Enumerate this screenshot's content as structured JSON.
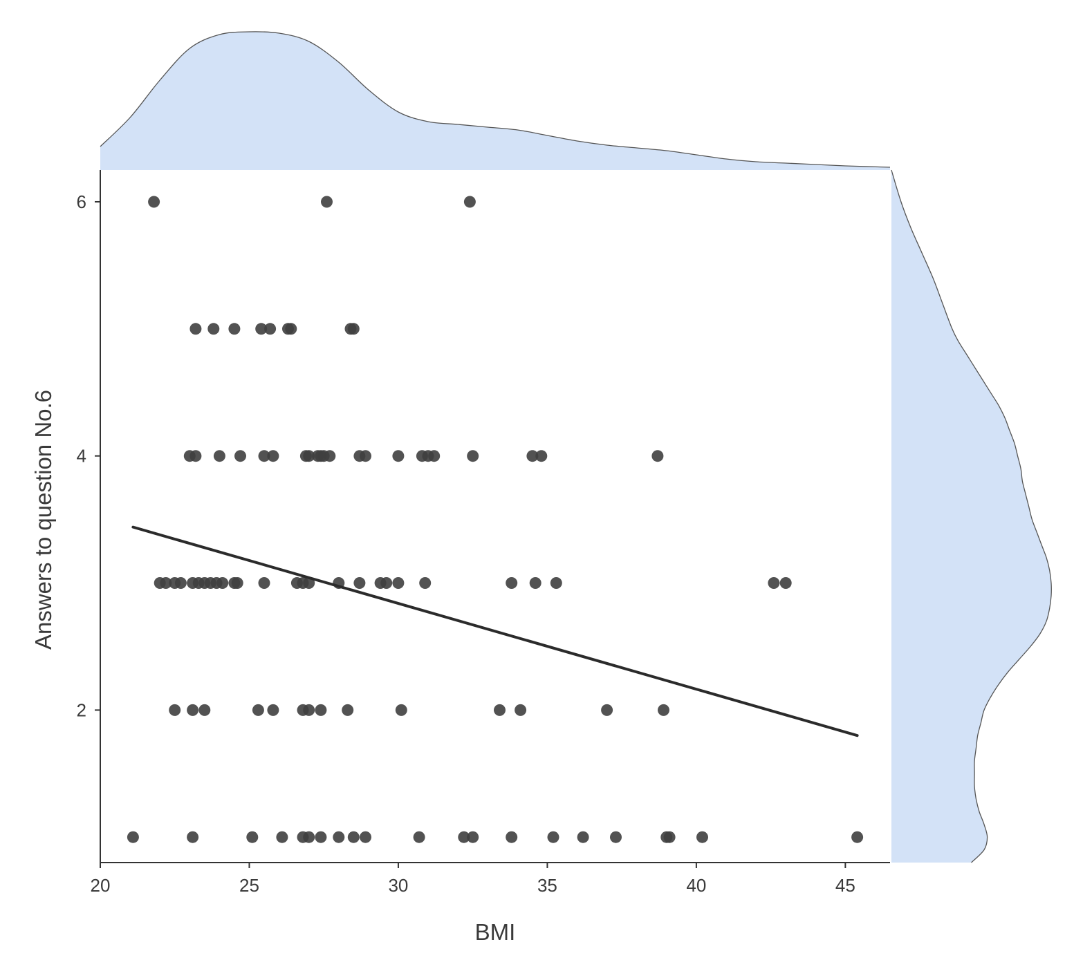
{
  "chart_data": {
    "type": "scatter",
    "xlabel": "BMI",
    "ylabel": "Answers to question No.6",
    "xlim": [
      20,
      46.5
    ],
    "ylim": [
      0.8,
      6.25
    ],
    "x_ticks": [
      20,
      25,
      30,
      35,
      40,
      45
    ],
    "x_tick_labels": [
      "20",
      "25",
      "30",
      "35",
      "40",
      "45"
    ],
    "y_ticks": [
      2,
      4,
      6
    ],
    "y_tick_labels": [
      "2",
      "4",
      "6"
    ],
    "grid": false,
    "legend": "none",
    "point_color": "#3f3f3f",
    "density_fill": "#d3e2f7",
    "density_stroke": "#555555",
    "points": [
      {
        "x": 21.8,
        "y": 6
      },
      {
        "x": 27.6,
        "y": 6
      },
      {
        "x": 32.4,
        "y": 6
      },
      {
        "x": 23.2,
        "y": 5
      },
      {
        "x": 23.8,
        "y": 5
      },
      {
        "x": 24.5,
        "y": 5
      },
      {
        "x": 25.4,
        "y": 5
      },
      {
        "x": 25.7,
        "y": 5
      },
      {
        "x": 26.3,
        "y": 5
      },
      {
        "x": 26.4,
        "y": 5
      },
      {
        "x": 28.4,
        "y": 5
      },
      {
        "x": 28.5,
        "y": 5
      },
      {
        "x": 23.0,
        "y": 4
      },
      {
        "x": 23.2,
        "y": 4
      },
      {
        "x": 24.0,
        "y": 4
      },
      {
        "x": 24.7,
        "y": 4
      },
      {
        "x": 25.5,
        "y": 4
      },
      {
        "x": 25.8,
        "y": 4
      },
      {
        "x": 26.9,
        "y": 4
      },
      {
        "x": 27.0,
        "y": 4
      },
      {
        "x": 27.3,
        "y": 4
      },
      {
        "x": 27.4,
        "y": 4
      },
      {
        "x": 27.5,
        "y": 4
      },
      {
        "x": 27.7,
        "y": 4
      },
      {
        "x": 28.7,
        "y": 4
      },
      {
        "x": 28.9,
        "y": 4
      },
      {
        "x": 30.0,
        "y": 4
      },
      {
        "x": 30.8,
        "y": 4
      },
      {
        "x": 31.0,
        "y": 4
      },
      {
        "x": 31.2,
        "y": 4
      },
      {
        "x": 32.5,
        "y": 4
      },
      {
        "x": 34.5,
        "y": 4
      },
      {
        "x": 34.8,
        "y": 4
      },
      {
        "x": 38.7,
        "y": 4
      },
      {
        "x": 22.0,
        "y": 3
      },
      {
        "x": 22.2,
        "y": 3
      },
      {
        "x": 22.5,
        "y": 3
      },
      {
        "x": 22.7,
        "y": 3
      },
      {
        "x": 23.1,
        "y": 3
      },
      {
        "x": 23.3,
        "y": 3
      },
      {
        "x": 23.5,
        "y": 3
      },
      {
        "x": 23.7,
        "y": 3
      },
      {
        "x": 23.9,
        "y": 3
      },
      {
        "x": 24.1,
        "y": 3
      },
      {
        "x": 24.5,
        "y": 3
      },
      {
        "x": 24.6,
        "y": 3
      },
      {
        "x": 25.5,
        "y": 3
      },
      {
        "x": 26.6,
        "y": 3
      },
      {
        "x": 26.8,
        "y": 3
      },
      {
        "x": 27.0,
        "y": 3
      },
      {
        "x": 28.0,
        "y": 3
      },
      {
        "x": 28.7,
        "y": 3
      },
      {
        "x": 29.4,
        "y": 3
      },
      {
        "x": 29.6,
        "y": 3
      },
      {
        "x": 30.0,
        "y": 3
      },
      {
        "x": 30.9,
        "y": 3
      },
      {
        "x": 33.8,
        "y": 3
      },
      {
        "x": 34.6,
        "y": 3
      },
      {
        "x": 35.3,
        "y": 3
      },
      {
        "x": 42.6,
        "y": 3
      },
      {
        "x": 43.0,
        "y": 3
      },
      {
        "x": 22.5,
        "y": 2
      },
      {
        "x": 23.1,
        "y": 2
      },
      {
        "x": 23.5,
        "y": 2
      },
      {
        "x": 25.3,
        "y": 2
      },
      {
        "x": 25.8,
        "y": 2
      },
      {
        "x": 26.8,
        "y": 2
      },
      {
        "x": 27.0,
        "y": 2
      },
      {
        "x": 27.4,
        "y": 2
      },
      {
        "x": 28.3,
        "y": 2
      },
      {
        "x": 30.1,
        "y": 2
      },
      {
        "x": 33.4,
        "y": 2
      },
      {
        "x": 34.1,
        "y": 2
      },
      {
        "x": 37.0,
        "y": 2
      },
      {
        "x": 38.9,
        "y": 2
      },
      {
        "x": 21.1,
        "y": 1
      },
      {
        "x": 23.1,
        "y": 1
      },
      {
        "x": 25.1,
        "y": 1
      },
      {
        "x": 26.1,
        "y": 1
      },
      {
        "x": 26.8,
        "y": 1
      },
      {
        "x": 27.0,
        "y": 1
      },
      {
        "x": 27.4,
        "y": 1
      },
      {
        "x": 28.0,
        "y": 1
      },
      {
        "x": 28.5,
        "y": 1
      },
      {
        "x": 28.9,
        "y": 1
      },
      {
        "x": 30.7,
        "y": 1
      },
      {
        "x": 32.2,
        "y": 1
      },
      {
        "x": 32.5,
        "y": 1
      },
      {
        "x": 33.8,
        "y": 1
      },
      {
        "x": 35.2,
        "y": 1
      },
      {
        "x": 36.2,
        "y": 1
      },
      {
        "x": 37.3,
        "y": 1
      },
      {
        "x": 39.0,
        "y": 1
      },
      {
        "x": 39.1,
        "y": 1
      },
      {
        "x": 40.2,
        "y": 1
      },
      {
        "x": 45.4,
        "y": 1
      }
    ],
    "regression_line": {
      "x": [
        21.1,
        45.4
      ],
      "y": [
        3.44,
        1.8
      ]
    },
    "top_density": {
      "x": [
        20,
        21,
        22,
        23,
        24,
        25,
        26,
        27,
        28,
        29,
        30,
        31,
        32,
        33,
        34,
        35,
        36,
        37,
        38,
        39,
        40,
        41,
        42,
        43,
        44,
        45,
        46.5
      ],
      "density": [
        0.17,
        0.38,
        0.65,
        0.88,
        0.98,
        1.0,
        0.99,
        0.93,
        0.78,
        0.58,
        0.42,
        0.35,
        0.33,
        0.31,
        0.29,
        0.25,
        0.21,
        0.18,
        0.16,
        0.14,
        0.11,
        0.08,
        0.06,
        0.05,
        0.04,
        0.03,
        0.02
      ]
    },
    "right_density": {
      "y": [
        0.8,
        0.9,
        1.0,
        1.1,
        1.2,
        1.3,
        1.4,
        1.5,
        1.6,
        1.7,
        1.8,
        1.9,
        2.0,
        2.1,
        2.2,
        2.3,
        2.4,
        2.5,
        2.6,
        2.7,
        2.8,
        2.9,
        3.0,
        3.1,
        3.2,
        3.3,
        3.4,
        3.5,
        3.6,
        3.7,
        3.8,
        3.9,
        4.0,
        4.1,
        4.2,
        4.3,
        4.4,
        4.5,
        4.6,
        4.7,
        4.8,
        4.9,
        5.0,
        5.2,
        5.4,
        5.6,
        5.8,
        6.0,
        6.25
      ],
      "density": [
        0.5,
        0.58,
        0.6,
        0.58,
        0.55,
        0.53,
        0.52,
        0.52,
        0.52,
        0.53,
        0.54,
        0.56,
        0.58,
        0.62,
        0.67,
        0.73,
        0.8,
        0.87,
        0.93,
        0.97,
        0.99,
        1.0,
        1.0,
        0.99,
        0.97,
        0.94,
        0.91,
        0.88,
        0.86,
        0.84,
        0.82,
        0.81,
        0.79,
        0.77,
        0.74,
        0.71,
        0.67,
        0.62,
        0.57,
        0.52,
        0.47,
        0.42,
        0.38,
        0.32,
        0.26,
        0.19,
        0.12,
        0.06,
        0.0
      ]
    }
  }
}
